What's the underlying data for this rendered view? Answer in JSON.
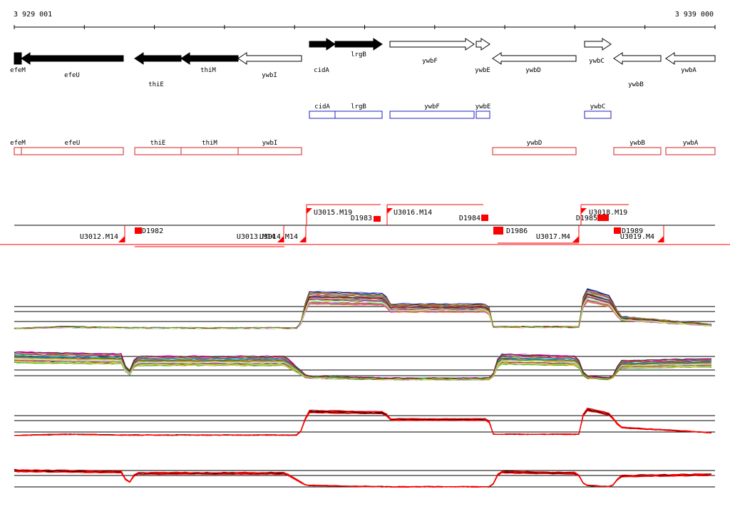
{
  "ruler": {
    "start_label": "3 929 001",
    "end_label": "3 939 000"
  },
  "genes": [
    {
      "id": "efeM",
      "label": "efeM",
      "strand": "-",
      "filled": true
    },
    {
      "id": "efeU",
      "label": "efeU",
      "strand": "-",
      "filled": true
    },
    {
      "id": "thiE",
      "label": "thiE",
      "strand": "-",
      "filled": true
    },
    {
      "id": "thiM",
      "label": "thiM",
      "strand": "-",
      "filled": true
    },
    {
      "id": "ywbI",
      "label": "ywbI",
      "strand": "-",
      "filled": false
    },
    {
      "id": "cidA",
      "label": "cidA",
      "strand": "+",
      "filled": true
    },
    {
      "id": "lrgB",
      "label": "lrgB",
      "strand": "+",
      "filled": true
    },
    {
      "id": "ywbF",
      "label": "ywbF",
      "strand": "+",
      "filled": false
    },
    {
      "id": "ywbE",
      "label": "ywbE",
      "strand": "+",
      "filled": false
    },
    {
      "id": "ywbD",
      "label": "ywbD",
      "strand": "-",
      "filled": false
    },
    {
      "id": "ywbC",
      "label": "ywbC",
      "strand": "+",
      "filled": false
    },
    {
      "id": "ywbB",
      "label": "ywbB",
      "strand": "-",
      "filled": false
    },
    {
      "id": "ywbA",
      "label": "ywbA",
      "strand": "-",
      "filled": false
    }
  ],
  "blue_track": [
    "cidA",
    "lrgB",
    "ywbF",
    "ywbE",
    "ywbC"
  ],
  "red_track": [
    "efeM",
    "efeU",
    "thiE",
    "thiM",
    "ywbI",
    "ywbD",
    "ywbB",
    "ywbA"
  ],
  "segments": {
    "upper": [
      {
        "id": "U3015",
        "label": "U3015.M19"
      },
      {
        "id": "D1983",
        "label": "D1983"
      },
      {
        "id": "U3016",
        "label": "U3016.M14"
      },
      {
        "id": "D1984",
        "label": "D1984"
      },
      {
        "id": "D1985",
        "label": "D1985"
      },
      {
        "id": "U3018",
        "label": "U3018.M19"
      }
    ],
    "lower": [
      {
        "id": "U3012",
        "label": "U3012.M14"
      },
      {
        "id": "D1982",
        "label": "D1982"
      },
      {
        "id": "U3013",
        "label": "U3013.M14"
      },
      {
        "id": "U3014",
        "label": "U3014.M14"
      },
      {
        "id": "D1986",
        "label": "D1986"
      },
      {
        "id": "U3017",
        "label": "U3017.M4"
      },
      {
        "id": "D1989",
        "label": "D1989"
      },
      {
        "id": "U3019",
        "label": "U3019.M4"
      }
    ]
  },
  "colors": {
    "gene_fill": "#000000",
    "blue_track": "#1f1fbf",
    "red_track": "#d62020",
    "segment_mark": "#ff0000",
    "palette": [
      "#e6194b",
      "#3cb44b",
      "#ffe119",
      "#4363d8",
      "#f58231",
      "#911eb4",
      "#46f0f0",
      "#f032e6",
      "#bcf60c",
      "#fabebe",
      "#008080",
      "#e6beff",
      "#9a6324",
      "#800000",
      "#aaffc3",
      "#808000",
      "#000075",
      "#808080",
      "#ff00ff",
      "#00c0ff",
      "#20a020",
      "#ff8040",
      "#8040ff",
      "#c0c000"
    ]
  },
  "profile_panels": [
    {
      "id": "panel-1",
      "style": "multi",
      "direction": "up"
    },
    {
      "id": "panel-2",
      "style": "multi",
      "direction": "down"
    },
    {
      "id": "panel-3",
      "style": "pair",
      "direction": "up"
    },
    {
      "id": "panel-4",
      "style": "pair",
      "direction": "down"
    }
  ]
}
